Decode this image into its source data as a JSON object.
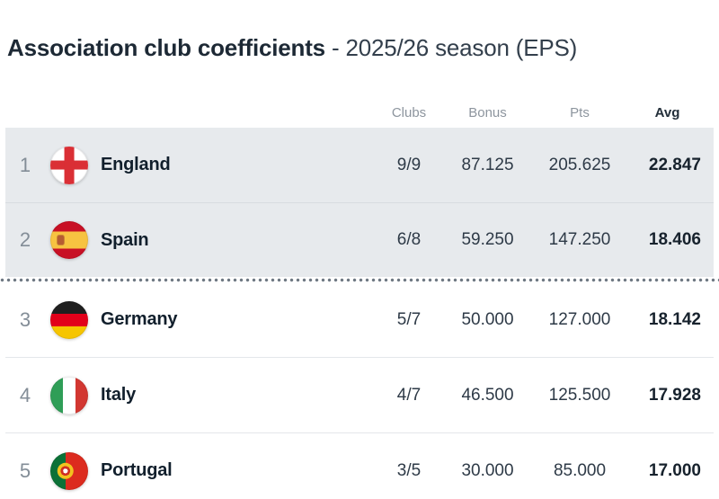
{
  "title": {
    "main": "Association club coefficients",
    "season": "- 2025/26 season (EPS)"
  },
  "table": {
    "headers": {
      "clubs": "Clubs",
      "bonus": "Bonus",
      "pts": "Pts",
      "avg": "Avg"
    },
    "rows": [
      {
        "rank": "1",
        "country": "England",
        "flag": "england-flag",
        "clubs": "9/9",
        "bonus": "87.125",
        "pts": "205.625",
        "avg": "22.847",
        "highlighted": true
      },
      {
        "rank": "2",
        "country": "Spain",
        "flag": "spain-flag",
        "clubs": "6/8",
        "bonus": "59.250",
        "pts": "147.250",
        "avg": "18.406",
        "highlighted": true
      },
      {
        "rank": "3",
        "country": "Germany",
        "flag": "germany-flag",
        "clubs": "5/7",
        "bonus": "50.000",
        "pts": "127.000",
        "avg": "18.142",
        "highlighted": false
      },
      {
        "rank": "4",
        "country": "Italy",
        "flag": "italy-flag",
        "clubs": "4/7",
        "bonus": "46.500",
        "pts": "125.500",
        "avg": "17.928",
        "highlighted": false
      },
      {
        "rank": "5",
        "country": "Portugal",
        "flag": "portugal-flag",
        "clubs": "3/5",
        "bonus": "30.000",
        "pts": "85.000",
        "avg": "17.000",
        "highlighted": false
      }
    ]
  },
  "chart_data": {
    "type": "table",
    "title": "Association club coefficients - 2025/26 season (EPS)",
    "columns": [
      "Rank",
      "Country",
      "Clubs",
      "Bonus",
      "Pts",
      "Avg"
    ],
    "rows": [
      [
        "1",
        "England",
        "9/9",
        "87.125",
        "205.625",
        "22.847"
      ],
      [
        "2",
        "Spain",
        "6/8",
        "59.250",
        "147.250",
        "18.406"
      ],
      [
        "3",
        "Germany",
        "5/7",
        "50.000",
        "127.000",
        "18.142"
      ],
      [
        "4",
        "Italy",
        "4/7",
        "46.500",
        "125.500",
        "17.928"
      ],
      [
        "5",
        "Portugal",
        "3/5",
        "30.000",
        "85.000",
        "17.000"
      ]
    ],
    "layout_hints": "Ranks 1-2 highlighted with grey background; dotted cutoff line after rank 2; Avg column bold"
  },
  "colors": {
    "highlight_row_bg": "#e7eaed",
    "dotted_line": "#6e7882",
    "muted_text": "#8d959e",
    "dark_text": "#111f2c",
    "england_red": "#da2f35",
    "spain_red": "#c81025",
    "spain_yellow": "#f7c341",
    "germany_black": "#1f1f1f",
    "germany_red": "#e2001a",
    "germany_gold": "#f6c500",
    "italy_green": "#2f9e57",
    "italy_red": "#d23731",
    "portugal_green": "#0c7137",
    "portugal_red": "#dc2b1e"
  }
}
